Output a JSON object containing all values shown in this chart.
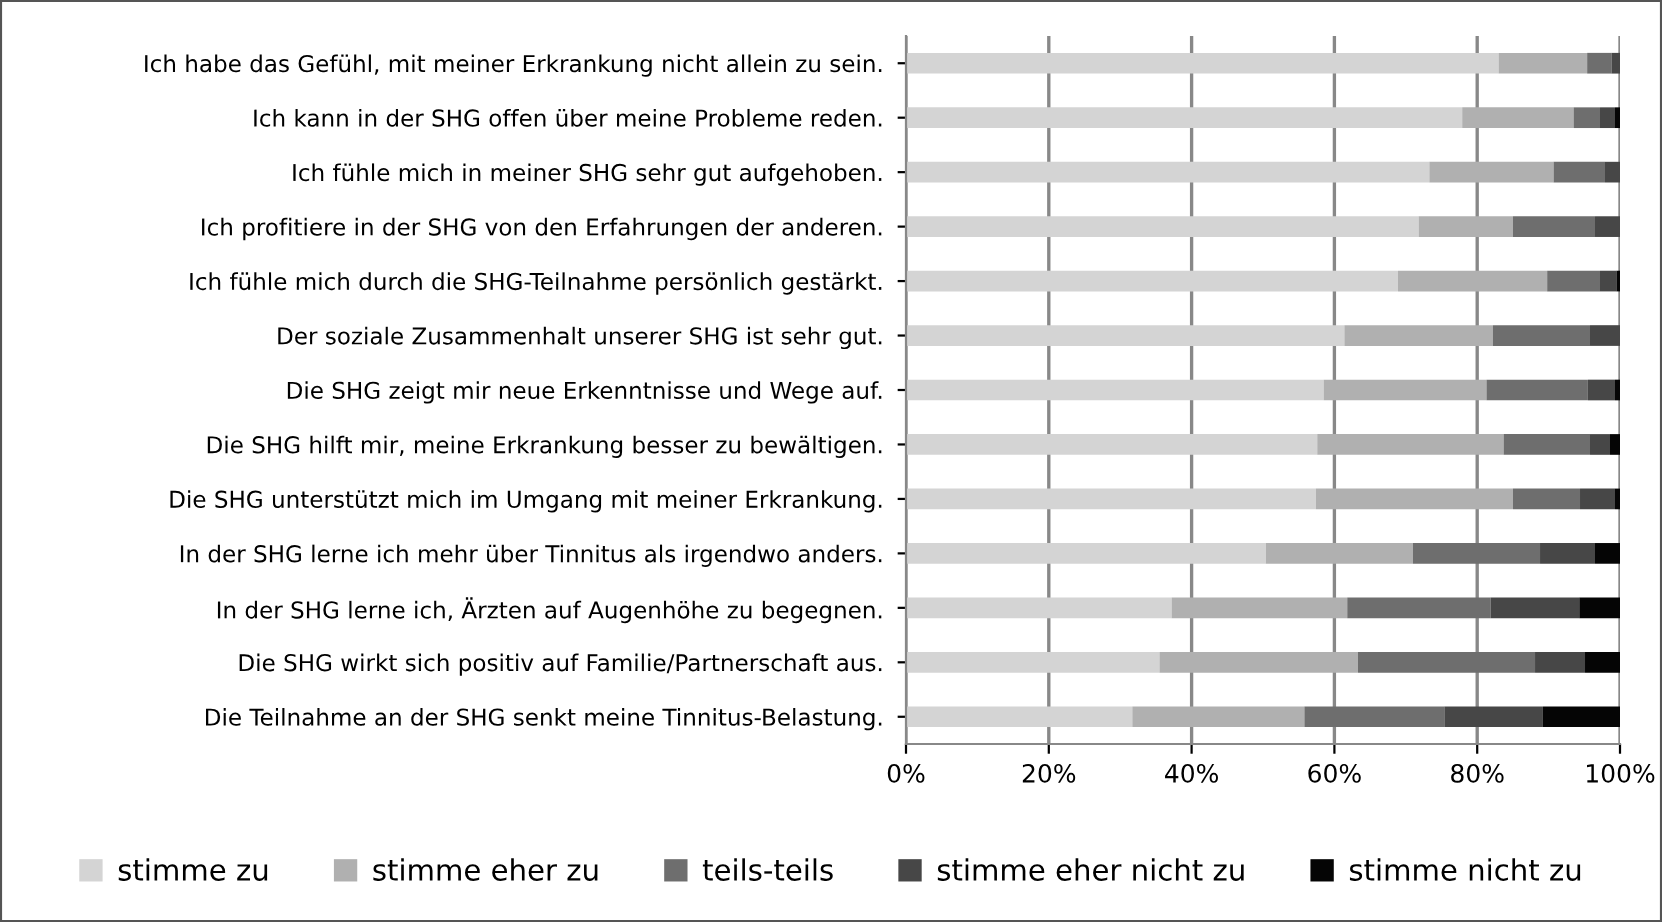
{
  "chart_data": {
    "type": "bar",
    "orientation": "horizontal",
    "stacked": true,
    "categories": [
      "Ich habe das Gefühl, mit meiner Erkrankung nicht allein zu sein.",
      "Ich kann in der SHG offen über meine Probleme reden.",
      "Ich fühle mich in meiner SHG sehr gut aufgehoben.",
      "Ich profitiere in der SHG von den Erfahrungen der anderen.",
      "Ich fühle mich durch die SHG-Teilnahme persönlich gestärkt.",
      "Der soziale Zusammenhalt unserer SHG ist sehr gut.",
      "Die SHG zeigt mir neue Erkenntnisse und Wege auf.",
      "Die SHG hilft mir, meine Erkrankung besser zu bewältigen.",
      "Die SHG unterstützt mich im Umgang mit meiner Erkrankung.",
      "In der SHG lerne ich mehr über Tinnitus als irgendwo anders.",
      "In der SHG lerne ich, Ärzten auf Augenhöhe zu begegnen.",
      "Die SHG wirkt sich positiv auf Familie/Partnerschaft aus.",
      "Die Teilnahme an der SHG senkt meine Tinnitus-Belastung."
    ],
    "series": [
      {
        "name": "stimme zu",
        "color": "#d4d4d4",
        "values": [
          83.0,
          77.9,
          73.3,
          71.8,
          68.9,
          61.4,
          58.5,
          57.6,
          57.4,
          50.4,
          37.2,
          35.5,
          31.7
        ]
      },
      {
        "name": "stimme eher zu",
        "color": "#b0b0b0",
        "values": [
          12.4,
          15.6,
          17.4,
          13.2,
          20.9,
          20.8,
          22.8,
          26.1,
          27.6,
          20.6,
          24.6,
          27.8,
          24.1
        ]
      },
      {
        "name": "teils-teils",
        "color": "#6e6e6e",
        "values": [
          3.4,
          3.7,
          7.2,
          11.5,
          7.4,
          13.6,
          14.2,
          12.1,
          9.4,
          17.8,
          20.1,
          24.8,
          19.6
        ]
      },
      {
        "name": "stimme eher nicht zu",
        "color": "#474747",
        "values": [
          1.2,
          2.1,
          2.1,
          3.5,
          2.3,
          4.2,
          3.8,
          2.8,
          4.9,
          7.7,
          12.4,
          7.0,
          13.8
        ]
      },
      {
        "name": "stimme nicht zu",
        "color": "#050505",
        "values": [
          0,
          0.7,
          0,
          0,
          0.5,
          0,
          0.7,
          1.4,
          0.7,
          3.5,
          5.7,
          4.9,
          10.8
        ]
      }
    ],
    "xlim": [
      0,
      100
    ],
    "xticks": [
      {
        "value": 0,
        "label": "0%"
      },
      {
        "value": 20,
        "label": "20%"
      },
      {
        "value": 40,
        "label": "40%"
      },
      {
        "value": 60,
        "label": "60%"
      },
      {
        "value": 80,
        "label": "80%"
      },
      {
        "value": 100,
        "label": "100%"
      }
    ],
    "grid": "x",
    "legend": "bottom"
  }
}
